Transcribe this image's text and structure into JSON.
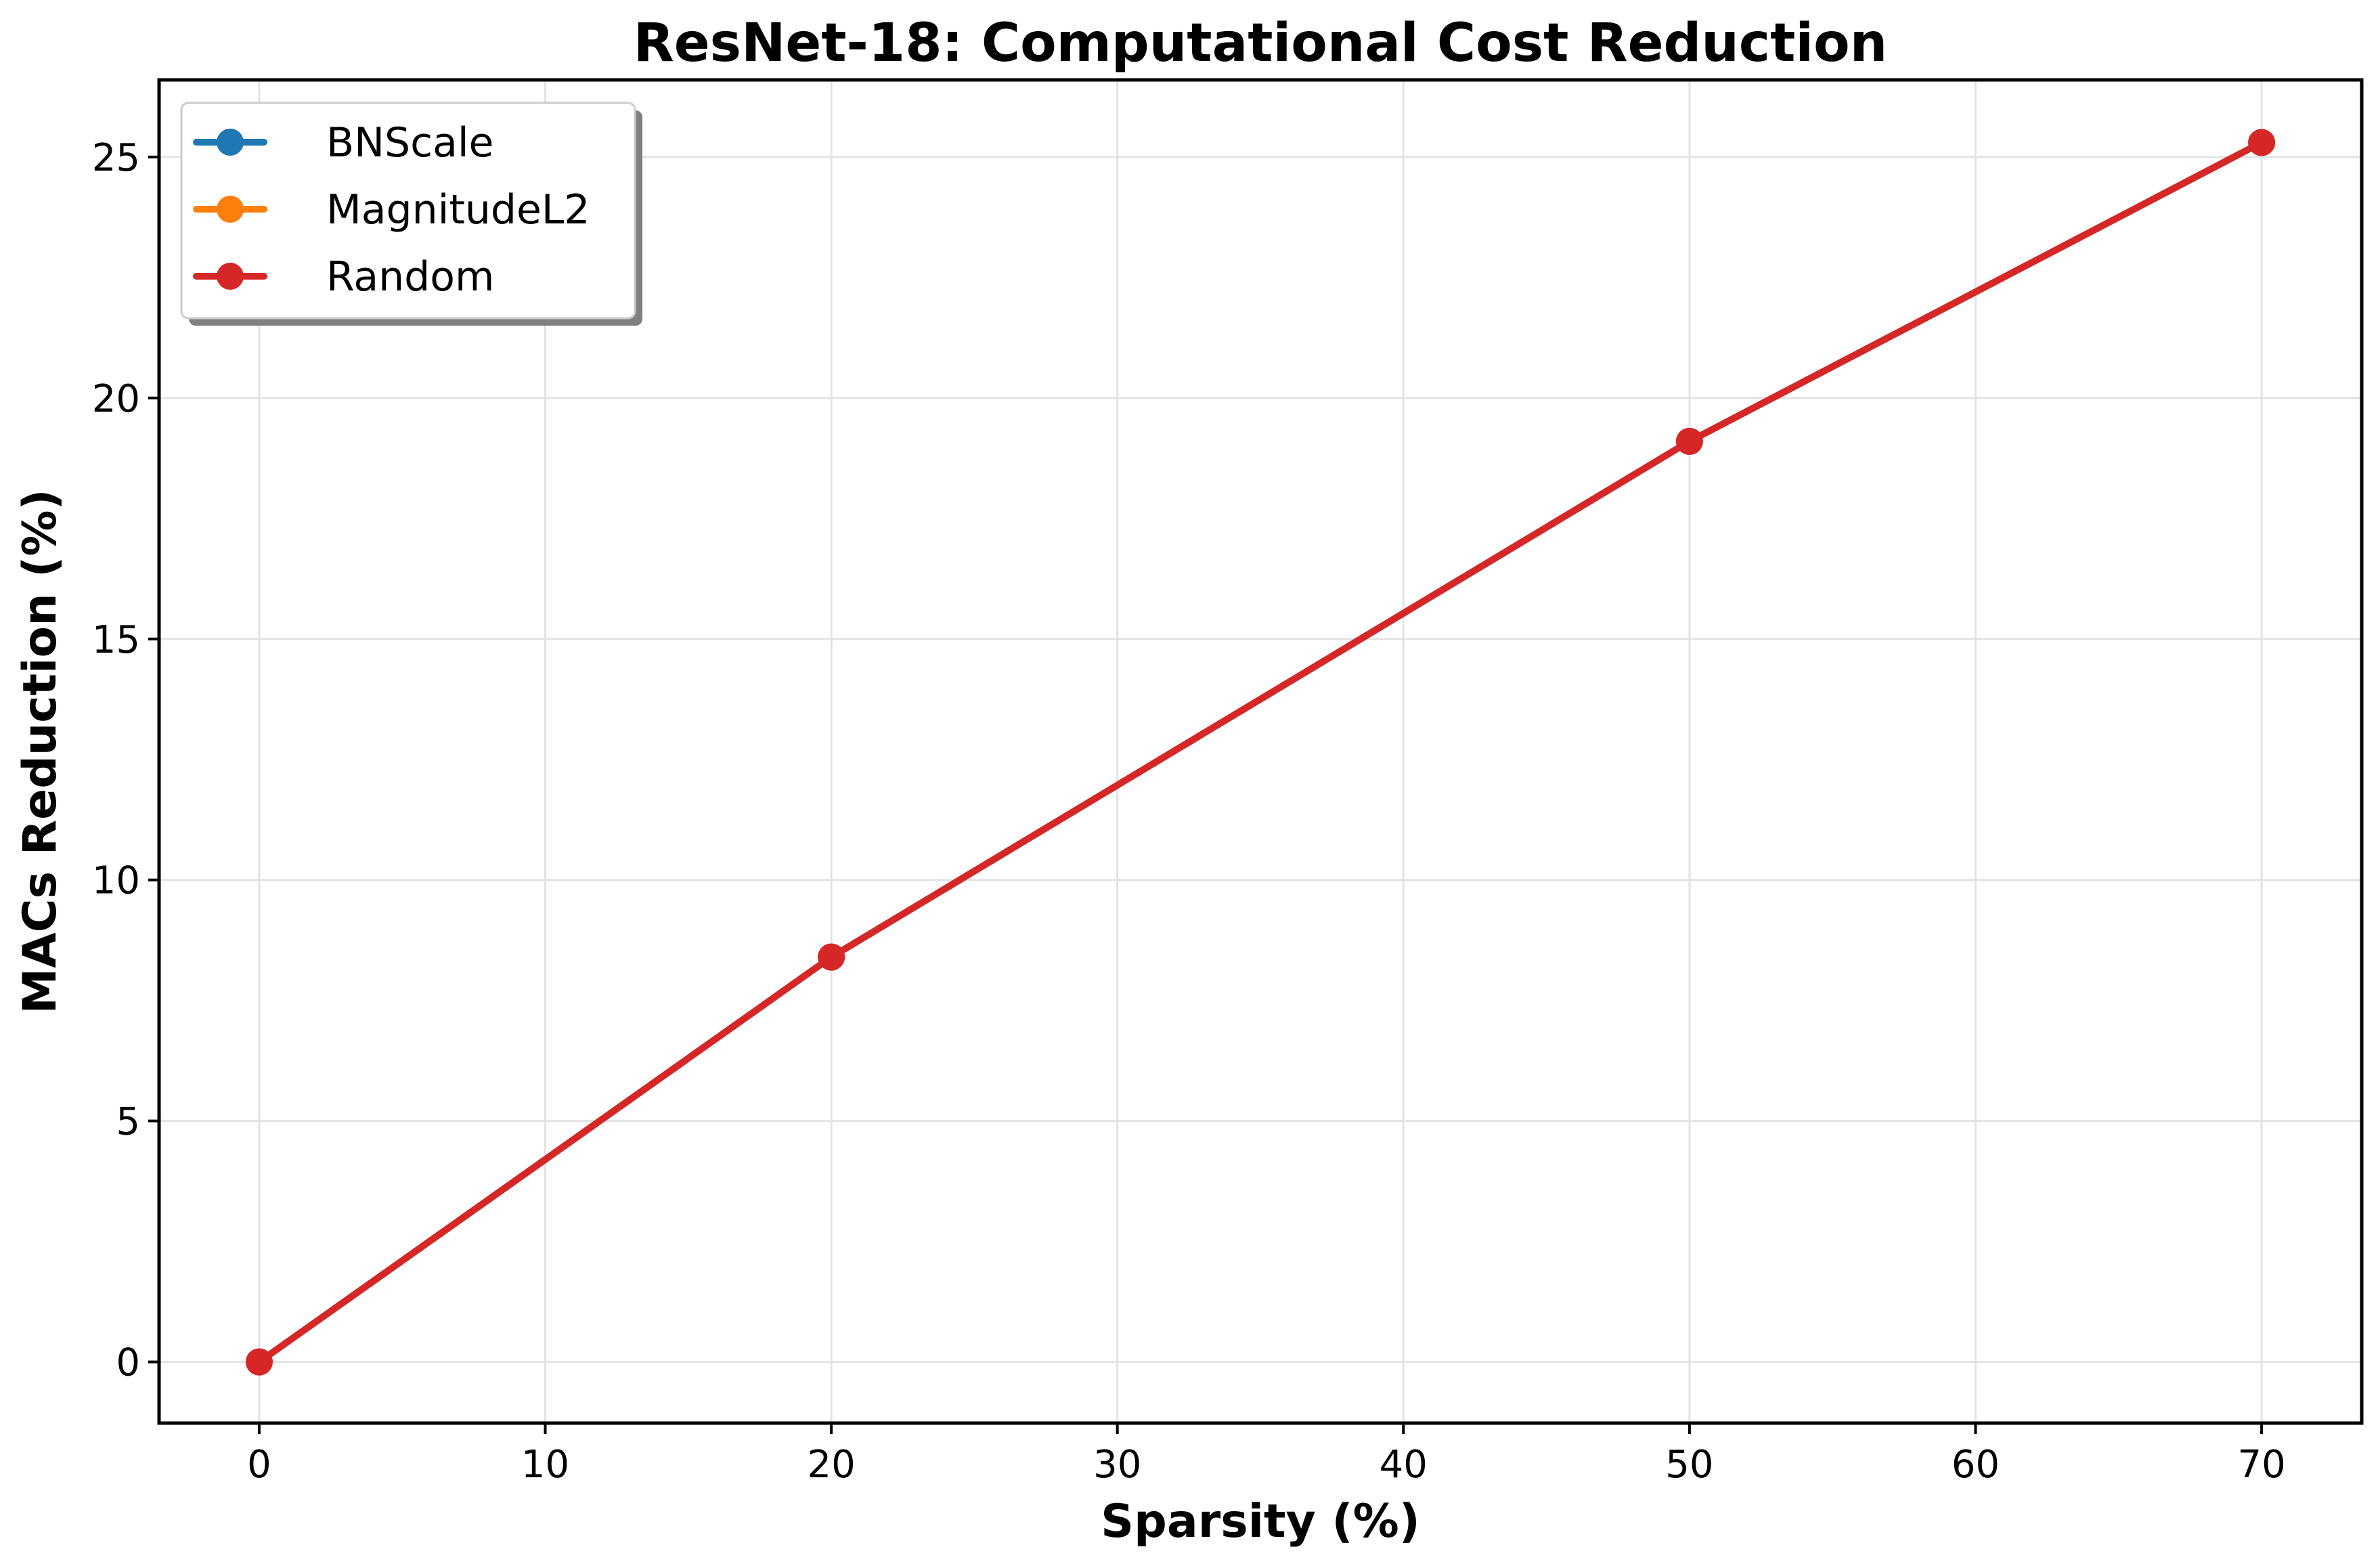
{
  "chart_data": {
    "type": "line",
    "title": "ResNet-18: Computational Cost Reduction",
    "xlabel": "Sparsity (%)",
    "ylabel": "MACs Reduction (%)",
    "x": [
      0,
      20,
      50,
      70
    ],
    "xlim": [
      -3.5,
      73.5
    ],
    "ylim": [
      -1.27,
      26.6
    ],
    "xticks": [
      0,
      10,
      20,
      30,
      40,
      50,
      60,
      70
    ],
    "yticks": [
      0,
      5,
      10,
      15,
      20,
      25
    ],
    "grid": true,
    "legend_position": "top-left",
    "series": [
      {
        "name": "BNScale",
        "color": "#1f77b4",
        "values": [
          0,
          8.4,
          19.1,
          25.3
        ]
      },
      {
        "name": "MagnitudeL2",
        "color": "#ff7f0e",
        "values": [
          0,
          8.4,
          19.1,
          25.3
        ]
      },
      {
        "name": "Random",
        "color": "#d62728",
        "values": [
          0,
          8.4,
          19.1,
          25.3
        ]
      }
    ]
  }
}
